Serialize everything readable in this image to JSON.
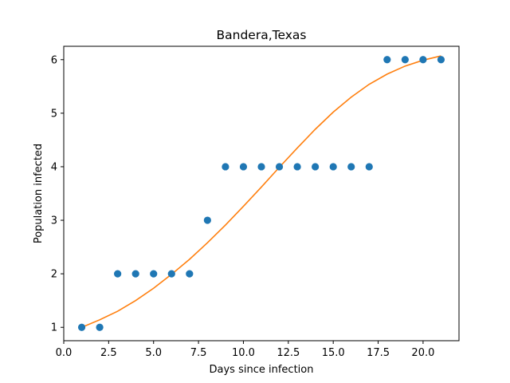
{
  "chart_data": {
    "type": "scatter",
    "title": "Bandera,Texas",
    "xlabel": "Days since infection",
    "ylabel": "Population infected",
    "xlim": [
      0.0,
      22.0
    ],
    "ylim": [
      0.75,
      6.25
    ],
    "xticks": [
      0.0,
      2.5,
      5.0,
      7.5,
      10.0,
      12.5,
      15.0,
      17.5,
      20.0
    ],
    "xtick_labels": [
      "0.0",
      "2.5",
      "5.0",
      "7.5",
      "10.0",
      "12.5",
      "15.0",
      "17.5",
      "20.0"
    ],
    "yticks": [
      1,
      2,
      3,
      4,
      5,
      6
    ],
    "ytick_labels": [
      "1",
      "2",
      "3",
      "4",
      "5",
      "6"
    ],
    "grid": false,
    "colors": {
      "points": "#1f77b4",
      "fit": "#ff7f0e"
    },
    "series": [
      {
        "kind": "scatter",
        "x": [
          1,
          2,
          3,
          4,
          5,
          6,
          7,
          8,
          9,
          10,
          11,
          12,
          13,
          14,
          15,
          16,
          17,
          18,
          19,
          20,
          21
        ],
        "y": [
          1,
          1,
          2,
          2,
          2,
          2,
          2,
          3,
          4,
          4,
          4,
          4,
          4,
          4,
          4,
          4,
          4,
          6,
          6,
          6,
          6
        ]
      },
      {
        "kind": "line",
        "x": [
          1,
          2,
          3,
          4,
          5,
          6,
          7,
          8,
          9,
          10,
          11,
          12,
          13,
          14,
          15,
          16,
          17,
          18,
          19,
          20,
          21
        ],
        "y": [
          1.0,
          1.14,
          1.3,
          1.5,
          1.73,
          1.99,
          2.27,
          2.58,
          2.91,
          3.26,
          3.62,
          3.99,
          4.35,
          4.7,
          5.02,
          5.3,
          5.54,
          5.73,
          5.88,
          5.99,
          6.07
        ]
      }
    ]
  }
}
